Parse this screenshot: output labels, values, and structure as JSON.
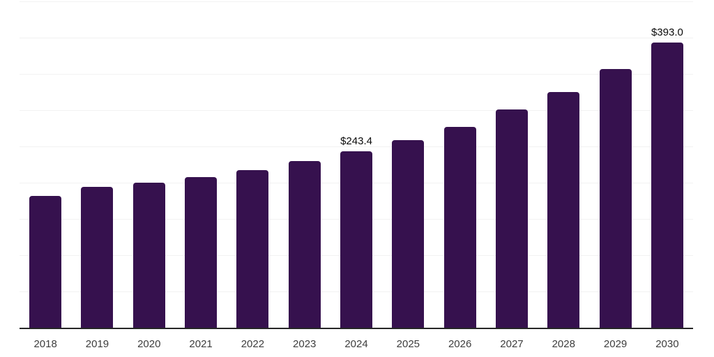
{
  "chart_data": {
    "type": "bar",
    "title": "",
    "xlabel": "",
    "ylabel": "",
    "categories": [
      "2018",
      "2019",
      "2020",
      "2021",
      "2022",
      "2023",
      "2024",
      "2025",
      "2026",
      "2027",
      "2028",
      "2029",
      "2030"
    ],
    "values": [
      181.9,
      194.2,
      200.0,
      208.0,
      217.6,
      229.9,
      243.4,
      258.8,
      276.5,
      300.6,
      324.8,
      357.0,
      393.0
    ],
    "point_labels": [
      "",
      "",
      "",
      "",
      "",
      "",
      "$243.4",
      "",
      "",
      "",
      "",
      "",
      "$393.0"
    ],
    "ylim": [
      0,
      450
    ],
    "gridline_step": 50,
    "grid": "horizontal-light",
    "legend": "none",
    "y_axis_tick_labels_visible": false
  },
  "colors": {
    "background": "#ffffff",
    "bar": "#36114e",
    "axis_line": "#262626",
    "gridline": "#f2f2f2",
    "tick_label": "#3d3d3d",
    "data_label": "#0a0a0a"
  }
}
